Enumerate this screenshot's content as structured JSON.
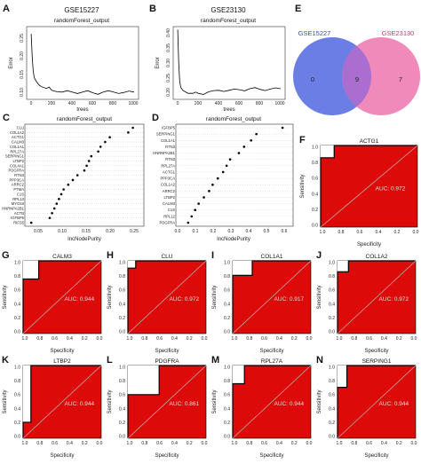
{
  "panels": {
    "A": {
      "label": "A",
      "title": "GSE15227",
      "subtitle": "randomForest_output",
      "xlabel": "trees",
      "ylabel": "Error",
      "xticks": [
        "0",
        "200",
        "400",
        "600",
        "800",
        "1000"
      ],
      "yticks": [
        "0.10",
        "0.15",
        "0.20",
        "0.25"
      ]
    },
    "B": {
      "label": "B",
      "title": "GSE23130",
      "subtitle": "randomForest_output",
      "xlabel": "trees",
      "ylabel": "Error",
      "xticks": [
        "0",
        "200",
        "400",
        "600",
        "800",
        "1000"
      ],
      "yticks": [
        "0.20",
        "0.25",
        "0.30",
        "0.35",
        "0.40"
      ]
    },
    "C": {
      "label": "C",
      "subtitle": "randomForest_output",
      "xlabel": "IncNodePurity",
      "xticks": [
        "0.05",
        "0.10",
        "0.15",
        "0.20",
        "0.25"
      ],
      "genes": [
        "CLU",
        "COL1A2",
        "ACTG1",
        "CALM3",
        "COL1A1",
        "RPL27A",
        "SERPING1",
        "LTBP2",
        "COL4A1",
        "PDGFRA",
        "RTN3",
        "PPP3CA",
        "ARRC2",
        "PTMA",
        "C1S",
        "RPL13",
        "MYO19",
        "HNRNPA2B1",
        "ACTB",
        "IGFBP5",
        "RIFS5"
      ]
    },
    "D": {
      "label": "D",
      "subtitle": "randomForest_output",
      "xlabel": "IncNodePurity",
      "xticks": [
        "0.0",
        "0.1",
        "0.2",
        "0.3",
        "0.4",
        "0.5",
        "0.6"
      ],
      "genes": [
        "IGFBP5",
        "SERPING1",
        "COL1A1",
        "RTN3",
        "HNRNPA2B1",
        "RTN3",
        "RPL27A",
        "ACTG1",
        "PPP3CA",
        "COL1A2",
        "ARRC2",
        "LTBP2",
        "CALM3",
        "C1S",
        "RPL12",
        "PDGFRA"
      ]
    },
    "E": {
      "label": "E",
      "left": "GSE15227",
      "right": "GSE23130",
      "left_only": "0",
      "both": "9",
      "right_only": "7"
    }
  },
  "roc_common": {
    "xlabel": "Specificity",
    "ylabel": "Sensitivity",
    "xticks": [
      "1.0",
      "0.8",
      "0.6",
      "0.4",
      "0.2",
      "0.0"
    ],
    "yticks": [
      "0.0",
      "0.2",
      "0.4",
      "0.6",
      "0.8",
      "1.0"
    ]
  },
  "roc": [
    {
      "label": "F",
      "gene": "ACTG1",
      "auc": "AUC: 0.972"
    },
    {
      "label": "G",
      "gene": "CALM3",
      "auc": "AUC: 0.944"
    },
    {
      "label": "H",
      "gene": "CLU",
      "auc": "AUC: 0.972"
    },
    {
      "label": "I",
      "gene": "COL1A1",
      "auc": "AUC: 0.917"
    },
    {
      "label": "J",
      "gene": "COL1A2",
      "auc": "AUC: 0.972"
    },
    {
      "label": "K",
      "gene": "LTBP2",
      "auc": "AUC: 0.944"
    },
    {
      "label": "L",
      "gene": "PDGFRA",
      "auc": "AUC: 0.861"
    },
    {
      "label": "M",
      "gene": "RPL27A",
      "auc": "AUC: 0.944"
    },
    {
      "label": "N",
      "gene": "SERPING1",
      "auc": "AUC: 0.944"
    }
  ],
  "chart_data": [
    {
      "type": "line",
      "title": "GSE15227",
      "subtitle": "randomForest_output",
      "xlabel": "trees",
      "ylabel": "Error",
      "xlim": [
        0,
        1000
      ],
      "ylim": [
        0.08,
        0.28
      ],
      "x": [
        1,
        10,
        20,
        30,
        50,
        75,
        100,
        150,
        200,
        300,
        400,
        500,
        600,
        700,
        800,
        900,
        1000
      ],
      "values": [
        0.26,
        0.2,
        0.16,
        0.14,
        0.13,
        0.12,
        0.115,
        0.11,
        0.105,
        0.1,
        0.1,
        0.1,
        0.098,
        0.1,
        0.1,
        0.099,
        0.1
      ]
    },
    {
      "type": "line",
      "title": "GSE23130",
      "subtitle": "randomForest_output",
      "xlabel": "trees",
      "ylabel": "Error",
      "xlim": [
        0,
        1000
      ],
      "ylim": [
        0.18,
        0.42
      ],
      "x": [
        1,
        10,
        20,
        30,
        50,
        75,
        100,
        150,
        200,
        300,
        400,
        500,
        600,
        700,
        800,
        900,
        1000
      ],
      "values": [
        0.41,
        0.3,
        0.24,
        0.22,
        0.21,
        0.205,
        0.2,
        0.2,
        0.2,
        0.205,
        0.21,
        0.21,
        0.212,
        0.215,
        0.213,
        0.214,
        0.215
      ]
    },
    {
      "type": "scatter",
      "subtitle": "randomForest_output",
      "xlabel": "IncNodePurity",
      "xlim": [
        0.02,
        0.27
      ],
      "categories": [
        "CLU",
        "COL1A2",
        "ACTG1",
        "CALM3",
        "COL1A1",
        "RPL27A",
        "SERPING1",
        "LTBP2",
        "COL4A1",
        "PDGFRA",
        "RTN3",
        "PPP3CA",
        "ARRC2",
        "PTMA",
        "C1S",
        "RPL13",
        "MYO19",
        "HNRNPA2B1",
        "ACTB",
        "IGFBP5",
        "RIFS5"
      ],
      "values": [
        0.25,
        0.24,
        0.2,
        0.19,
        0.18,
        0.175,
        0.16,
        0.155,
        0.15,
        0.145,
        0.13,
        0.12,
        0.11,
        0.1,
        0.095,
        0.09,
        0.085,
        0.08,
        0.075,
        0.07,
        0.03
      ]
    },
    {
      "type": "scatter",
      "subtitle": "randomForest_output",
      "xlabel": "IncNodePurity",
      "xlim": [
        0,
        0.65
      ],
      "categories": [
        "IGFBP5",
        "SERPING1",
        "COL1A1",
        "RTN3",
        "HNRNPA2B1",
        "RTN3",
        "RPL27A",
        "ACTG1",
        "PPP3CA",
        "COL1A2",
        "ARRC2",
        "LTBP2",
        "CALM3",
        "C1S",
        "RPL12",
        "PDGFRA"
      ],
      "values": [
        0.6,
        0.45,
        0.42,
        0.38,
        0.35,
        0.3,
        0.28,
        0.26,
        0.23,
        0.2,
        0.18,
        0.15,
        0.12,
        0.1,
        0.08,
        0.06
      ]
    }
  ],
  "colors": {
    "venn_left": "#6b7ee6",
    "venn_right": "#f08abb",
    "venn_overlap": "#a96ed0",
    "roc_fill": "#dd0a0a",
    "line": "#000000"
  }
}
